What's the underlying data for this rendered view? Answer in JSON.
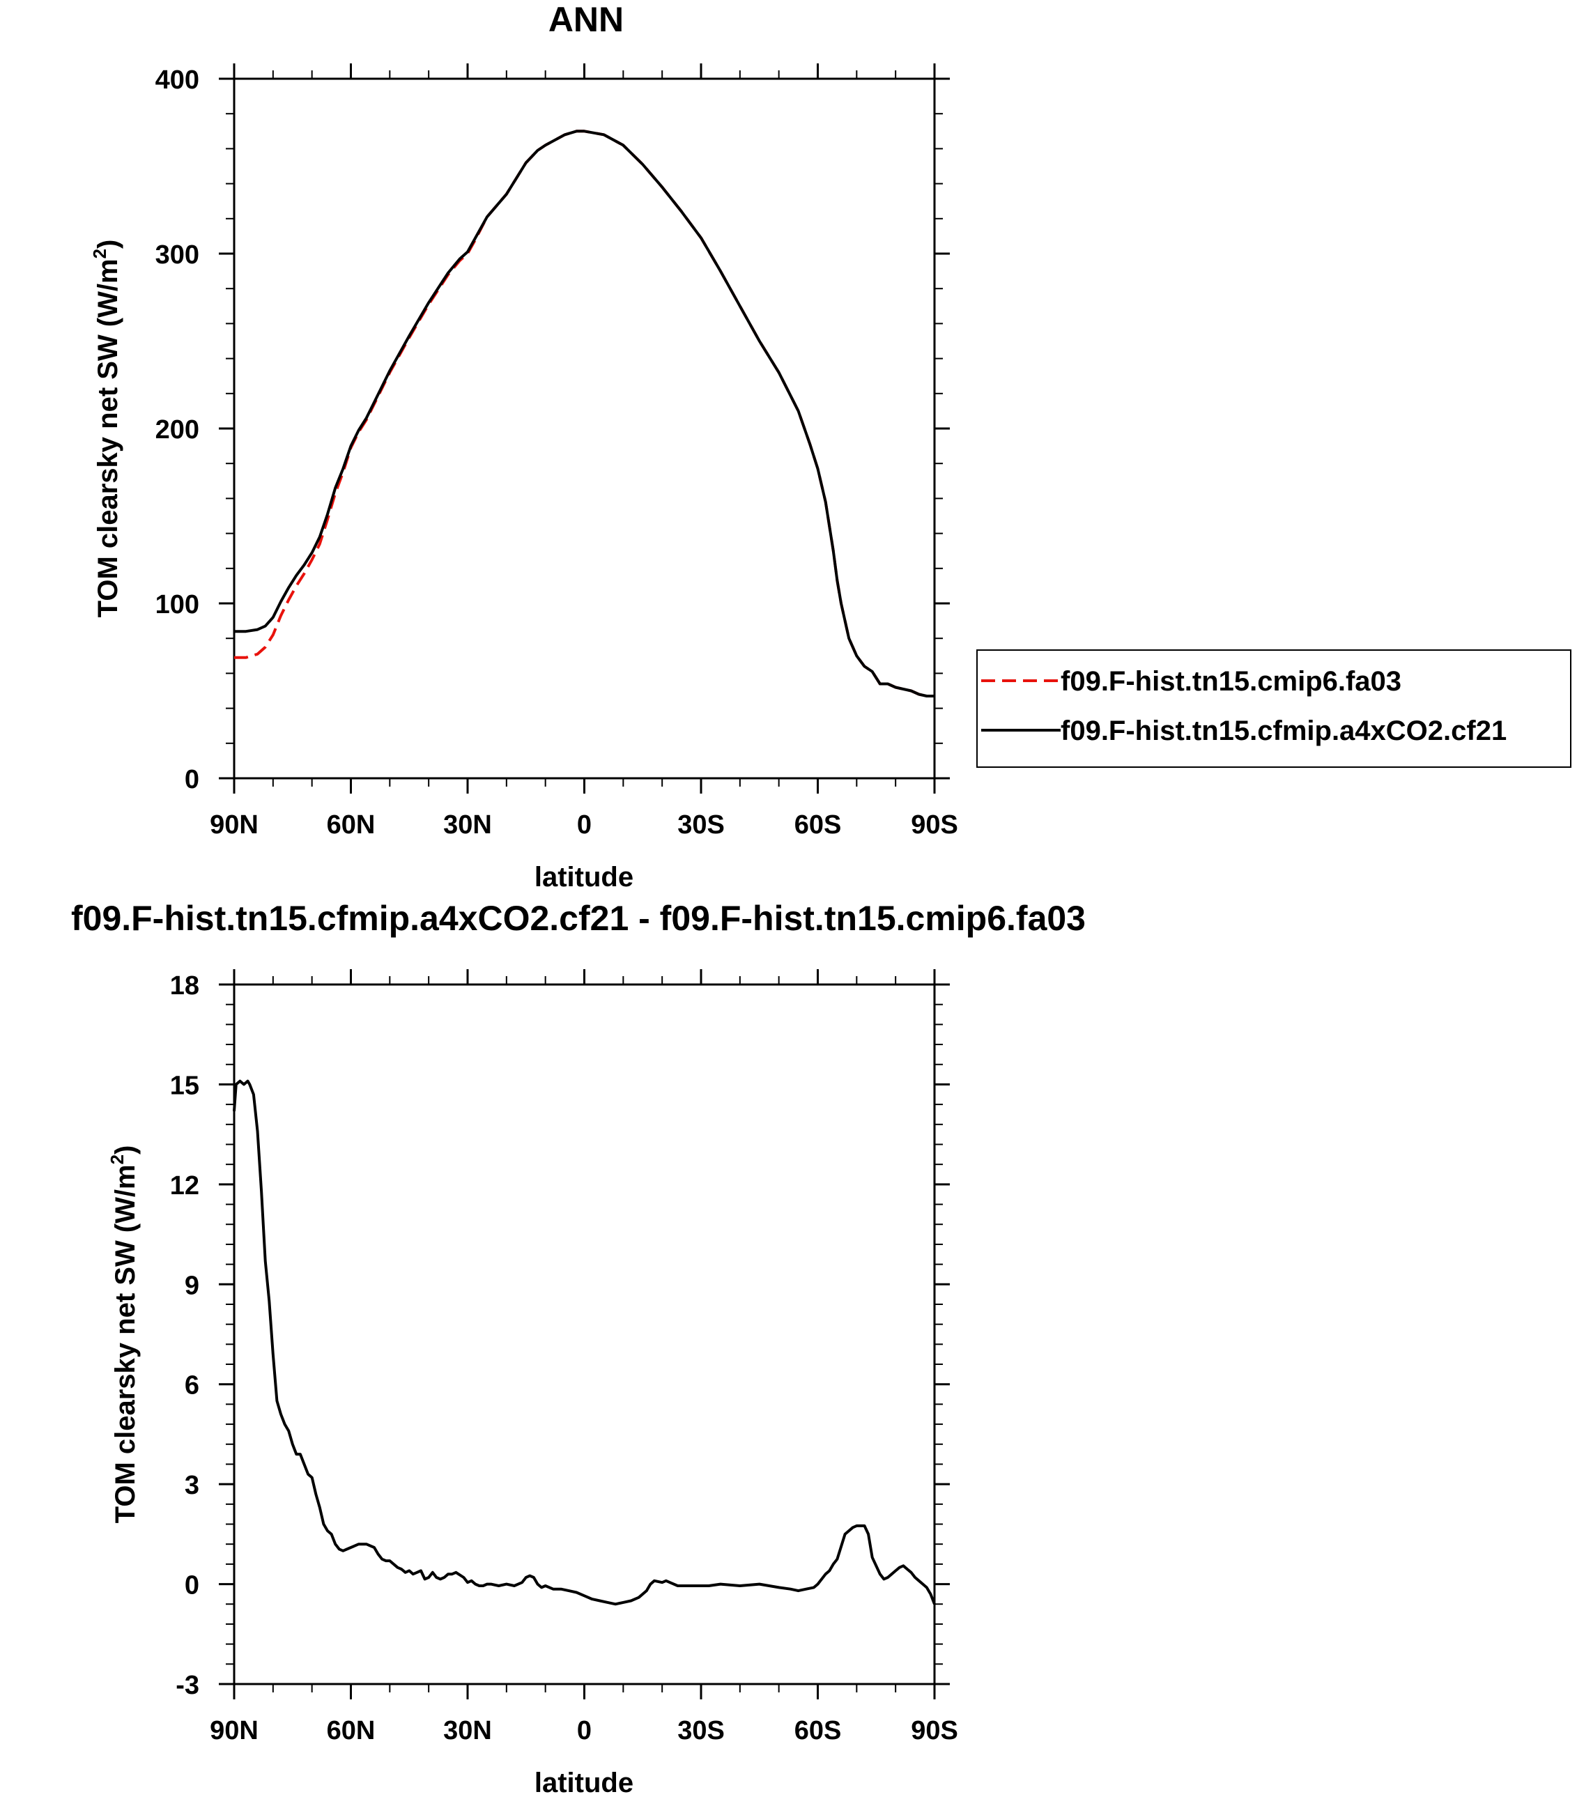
{
  "chart_data": [
    {
      "type": "line",
      "title": "ANN",
      "xlabel": "latitude",
      "ylabel": "TOM clearsky net SW (W/m",
      "ylabel_sup": "2",
      "ylabel_close": ")",
      "xlim": [
        90,
        -90
      ],
      "ylim": [
        0,
        400
      ],
      "x_ticks": [
        {
          "v": 90,
          "label": "90N"
        },
        {
          "v": 60,
          "label": "60N"
        },
        {
          "v": 30,
          "label": "30N"
        },
        {
          "v": 0,
          "label": "0"
        },
        {
          "v": -30,
          "label": "30S"
        },
        {
          "v": -60,
          "label": "60S"
        },
        {
          "v": -90,
          "label": "90S"
        }
      ],
      "y_ticks": [
        {
          "v": 0,
          "label": "0"
        },
        {
          "v": 100,
          "label": "100"
        },
        {
          "v": 200,
          "label": "200"
        },
        {
          "v": 300,
          "label": "300"
        },
        {
          "v": 400,
          "label": "400"
        }
      ],
      "legend": {
        "placement": "right",
        "entries": [
          {
            "name": "f09.F-hist.tn15.cmip6.fa03",
            "color": "#e8120c",
            "dash": true
          },
          {
            "name": "f09.F-hist.tn15.cfmip.a4xCO2.cf21",
            "color": "#000000",
            "dash": false
          }
        ]
      },
      "series": [
        {
          "name": "f09.F-hist.tn15.cfmip.a4xCO2.cf21",
          "color": "#000000",
          "dash": false,
          "x": [
            90,
            87,
            84,
            82,
            80,
            78,
            76,
            74,
            72,
            70,
            68,
            66,
            64,
            62,
            60,
            58,
            56,
            54,
            50,
            45,
            40,
            35,
            32,
            30,
            28,
            25,
            20,
            15,
            12,
            10,
            5,
            2,
            0,
            -5,
            -10,
            -15,
            -20,
            -25,
            -30,
            -35,
            -40,
            -45,
            -50,
            -55,
            -58,
            -60,
            -62,
            -64,
            -65,
            -66,
            -67,
            -68,
            -70,
            -72,
            -74,
            -76,
            -78,
            -80,
            -82,
            -84,
            -86,
            -88,
            -90
          ],
          "y": [
            84,
            84,
            85,
            87,
            92,
            101,
            109,
            116,
            122,
            129,
            138,
            151,
            166,
            177,
            190,
            199,
            206,
            215,
            233,
            253,
            272,
            289,
            297,
            301,
            309,
            321,
            334,
            352,
            359,
            362,
            368,
            370,
            370,
            368,
            362,
            351,
            338,
            324,
            309,
            290,
            270,
            250,
            232,
            210,
            191,
            177,
            158,
            130,
            113,
            100,
            90,
            80,
            70,
            64,
            61,
            54,
            54,
            52,
            51,
            50,
            48,
            47,
            47
          ]
        },
        {
          "name": "f09.F-hist.tn15.cmip6.fa03",
          "color": "#e8120c",
          "dash": true,
          "x": [
            90,
            87,
            84,
            82,
            80,
            78,
            76,
            74,
            72,
            70,
            68,
            66,
            64,
            62,
            60,
            58,
            56,
            54,
            50,
            45,
            40,
            35,
            32,
            30,
            28,
            25,
            20,
            15,
            12,
            10,
            5,
            2,
            0,
            -5,
            -10,
            -15,
            -20,
            -25,
            -30,
            -35,
            -40,
            -45,
            -50,
            -55,
            -58,
            -60,
            -62,
            -64,
            -65,
            -66,
            -67,
            -68,
            -70,
            -72,
            -74,
            -76,
            -78,
            -80,
            -82,
            -84,
            -86,
            -88,
            -90
          ],
          "y": [
            69,
            69,
            71,
            75,
            82,
            93,
            102,
            110,
            117,
            125,
            134,
            148,
            163,
            175,
            189,
            198,
            205,
            214,
            232,
            252,
            271,
            288,
            296,
            300,
            308,
            321,
            334,
            352,
            359,
            362,
            368,
            370,
            370,
            368,
            362,
            351,
            338,
            324,
            309,
            290,
            270,
            250,
            232,
            210,
            191,
            177,
            158,
            130,
            113,
            100,
            90,
            80,
            70,
            64,
            61,
            54,
            54,
            52,
            51,
            50,
            48,
            47,
            47
          ]
        }
      ]
    },
    {
      "type": "line",
      "title": "f09.F-hist.tn15.cfmip.a4xCO2.cf21 - f09.F-hist.tn15.cmip6.fa03",
      "xlabel": "latitude",
      "ylabel": "TOM clearsky net SW (W/m",
      "ylabel_sup": "2",
      "ylabel_close": ")",
      "xlim": [
        90,
        -90
      ],
      "ylim": [
        -3,
        18
      ],
      "x_ticks": [
        {
          "v": 90,
          "label": "90N"
        },
        {
          "v": 60,
          "label": "60N"
        },
        {
          "v": 30,
          "label": "30N"
        },
        {
          "v": 0,
          "label": "0"
        },
        {
          "v": -30,
          "label": "30S"
        },
        {
          "v": -60,
          "label": "60S"
        },
        {
          "v": -90,
          "label": "90S"
        }
      ],
      "y_ticks": [
        {
          "v": -3,
          "label": "-3"
        },
        {
          "v": 0,
          "label": "0"
        },
        {
          "v": 3,
          "label": "3"
        },
        {
          "v": 6,
          "label": "6"
        },
        {
          "v": 9,
          "label": "9"
        },
        {
          "v": 12,
          "label": "12"
        },
        {
          "v": 15,
          "label": "15"
        },
        {
          "v": 18,
          "label": "18"
        }
      ],
      "series": [
        {
          "name": "difference",
          "color": "#000000",
          "dash": false,
          "x": [
            90,
            89.5,
            88.5,
            87.5,
            86.5,
            86,
            85,
            84,
            83,
            82,
            81,
            80,
            79,
            78,
            77,
            76,
            75,
            74,
            73,
            72,
            71,
            70,
            69,
            68,
            67,
            66,
            65,
            64,
            63,
            62,
            61,
            60,
            58,
            56,
            54,
            53,
            52,
            51,
            50,
            48,
            47,
            46,
            45,
            44,
            43,
            42,
            41,
            40,
            39,
            38,
            37,
            36,
            35,
            34,
            33,
            31,
            30,
            29,
            28,
            27,
            26,
            25,
            24,
            22,
            20,
            18,
            16,
            15,
            14,
            13,
            12,
            11,
            10,
            8,
            6,
            4,
            2,
            0,
            -2,
            -4,
            -6,
            -8,
            -10,
            -12,
            -14,
            -16,
            -17,
            -18,
            -20,
            -21,
            -22,
            -24,
            -26,
            -28,
            -30,
            -32,
            -35,
            -40,
            -45,
            -50,
            -53,
            -55,
            -57,
            -59,
            -60,
            -62,
            -63,
            -64,
            -65,
            -67,
            -69,
            -70,
            -71,
            -72,
            -73,
            -74,
            -75,
            -76,
            -77,
            -78,
            -79,
            -80,
            -81,
            -82,
            -83,
            -84,
            -85,
            -86,
            -87,
            -88,
            -89,
            -90
          ],
          "y": [
            14.2,
            15.0,
            15.1,
            15.0,
            15.1,
            15.0,
            14.7,
            13.6,
            11.8,
            9.7,
            8.5,
            6.9,
            5.5,
            5.1,
            4.8,
            4.6,
            4.2,
            3.9,
            3.9,
            3.6,
            3.3,
            3.2,
            2.7,
            2.3,
            1.8,
            1.6,
            1.5,
            1.2,
            1.05,
            1.0,
            1.05,
            1.1,
            1.2,
            1.2,
            1.1,
            0.9,
            0.75,
            0.7,
            0.7,
            0.5,
            0.45,
            0.35,
            0.4,
            0.3,
            0.35,
            0.4,
            0.15,
            0.2,
            0.35,
            0.2,
            0.15,
            0.2,
            0.3,
            0.3,
            0.35,
            0.2,
            0.05,
            0.1,
            0.0,
            -0.05,
            -0.05,
            0.0,
            0.0,
            -0.05,
            0.0,
            -0.05,
            0.05,
            0.2,
            0.25,
            0.2,
            0.0,
            -0.1,
            -0.05,
            -0.15,
            -0.15,
            -0.2,
            -0.25,
            -0.35,
            -0.45,
            -0.5,
            -0.55,
            -0.6,
            -0.55,
            -0.5,
            -0.4,
            -0.2,
            0.0,
            0.1,
            0.05,
            0.1,
            0.05,
            -0.05,
            -0.05,
            -0.05,
            -0.05,
            -0.05,
            0.0,
            -0.05,
            0.0,
            -0.1,
            -0.15,
            -0.2,
            -0.15,
            -0.1,
            0.0,
            0.3,
            0.4,
            0.6,
            0.75,
            1.5,
            1.7,
            1.75,
            1.75,
            1.75,
            1.5,
            0.8,
            0.55,
            0.3,
            0.15,
            0.2,
            0.3,
            0.4,
            0.5,
            0.55,
            0.45,
            0.35,
            0.2,
            0.1,
            0.0,
            -0.1,
            -0.3,
            -0.6
          ]
        }
      ]
    }
  ]
}
